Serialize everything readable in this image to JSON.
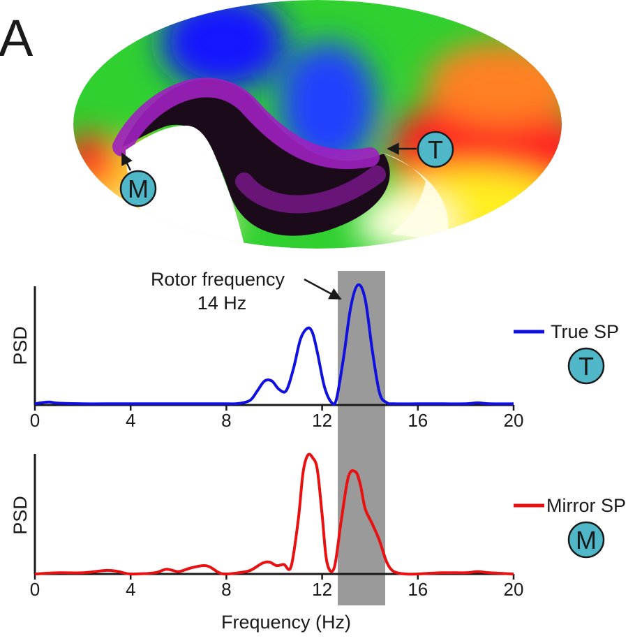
{
  "panel_label": "A",
  "map": {
    "markers": [
      {
        "id": "true",
        "label": "T",
        "color": "#4fb7c7"
      },
      {
        "id": "mirror",
        "label": "M",
        "color": "#4fb7c7"
      }
    ]
  },
  "annotation": {
    "line1": "Rotor frequency",
    "line2": "14 Hz"
  },
  "chart_data": [
    {
      "type": "line",
      "title": "",
      "xlabel": "",
      "ylabel": "PSD",
      "xlim": [
        0,
        20
      ],
      "ylim": [
        0,
        1
      ],
      "xticks": [
        0,
        4,
        8,
        12,
        16,
        20
      ],
      "highlight_band": [
        12.5,
        14.5
      ],
      "series": [
        {
          "name": "True SP",
          "marker_label": "T",
          "color": "#1010e0",
          "x": [
            0,
            0.3,
            0.6,
            1,
            2,
            3,
            4,
            5,
            6,
            7,
            8,
            8.5,
            9,
            9.3,
            9.6,
            9.9,
            10.2,
            10.5,
            10.8,
            11.1,
            11.4,
            11.6,
            11.8,
            12.1,
            12.4,
            12.6,
            12.9,
            13.2,
            13.5,
            13.8,
            14.1,
            14.4,
            14.7,
            15,
            16,
            17,
            18,
            18.5,
            19,
            20
          ],
          "y": [
            0.01,
            0.02,
            0.025,
            0.015,
            0.01,
            0.01,
            0.01,
            0.01,
            0.01,
            0.01,
            0.01,
            0.012,
            0.04,
            0.12,
            0.2,
            0.2,
            0.13,
            0.12,
            0.3,
            0.55,
            0.64,
            0.6,
            0.44,
            0.15,
            0.02,
            0.05,
            0.4,
            0.82,
            1.0,
            0.88,
            0.45,
            0.1,
            0.02,
            0.01,
            0.01,
            0.01,
            0.01,
            0.018,
            0.01,
            0.01
          ]
        }
      ]
    },
    {
      "type": "line",
      "title": "",
      "xlabel": "Frequency (Hz)",
      "ylabel": "PSD",
      "xlim": [
        0,
        20
      ],
      "ylim": [
        0,
        1
      ],
      "xticks": [
        0,
        4,
        8,
        12,
        16,
        20
      ],
      "highlight_band": [
        12.5,
        14.5
      ],
      "series": [
        {
          "name": "Mirror SP",
          "marker_label": "M",
          "color": "#e81010",
          "x": [
            0,
            1,
            2,
            3,
            3.5,
            4,
            5,
            5.5,
            6,
            6.5,
            7,
            7.3,
            7.7,
            8,
            8.5,
            9,
            9.5,
            9.8,
            10.1,
            10.4,
            10.7,
            11,
            11.2,
            11.4,
            11.6,
            11.8,
            12,
            12.2,
            12.5,
            12.8,
            13.1,
            13.4,
            13.6,
            13.8,
            14.1,
            14.4,
            14.7,
            15,
            15.5,
            16,
            17,
            18,
            18.5,
            19,
            20
          ],
          "y": [
            0.0,
            0.01,
            0.01,
            0.03,
            0.02,
            0.0,
            0.01,
            0.04,
            0.02,
            0.05,
            0.07,
            0.06,
            0.01,
            0.0,
            0.01,
            0.03,
            0.09,
            0.1,
            0.07,
            0.08,
            0.06,
            0.45,
            0.85,
            1.0,
            0.98,
            0.88,
            0.5,
            0.1,
            0.05,
            0.45,
            0.82,
            0.86,
            0.75,
            0.55,
            0.42,
            0.28,
            0.1,
            0.02,
            0.0,
            0.0,
            0.01,
            0.01,
            0.02,
            0.01,
            0.0
          ]
        }
      ]
    }
  ]
}
